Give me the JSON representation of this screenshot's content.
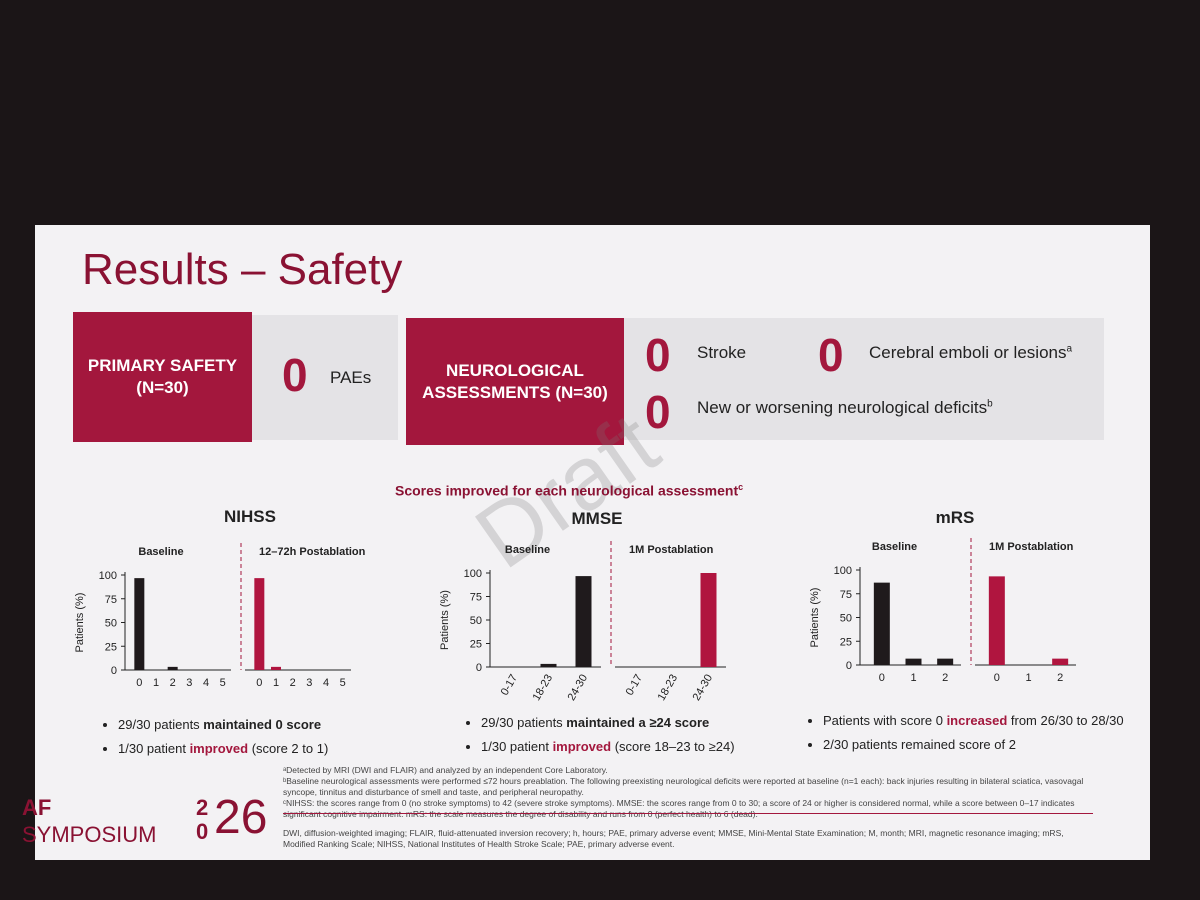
{
  "title": "Results – Safety",
  "primary": {
    "label": "PRIMARY SAFETY (N=30)",
    "value": "0",
    "unit": "PAEs"
  },
  "neuro": {
    "label": "NEUROLOGICAL ASSESSMENTS (N=30)",
    "items": [
      {
        "value": "0",
        "text": "Stroke"
      },
      {
        "value": "0",
        "text": "Cerebral emboli or lesions",
        "sup": "a"
      },
      {
        "value": "0",
        "text": "New or worsening neurological deficits",
        "sup": "b"
      }
    ]
  },
  "watermark": "Draft",
  "heading": {
    "text": "Scores improved for each neurological assessment",
    "sup": "c"
  },
  "chart_data": [
    {
      "type": "bar",
      "title": "NIHSS",
      "ylabel": "Patients (%)",
      "categories": [
        "0",
        "1",
        "2",
        "3",
        "4",
        "5"
      ],
      "ylim": [
        0,
        100
      ],
      "yticks": [
        0,
        25,
        50,
        75,
        100
      ],
      "series": [
        {
          "name": "Baseline",
          "color": "#1f1a1c",
          "values": [
            96.7,
            0,
            3.3,
            0,
            0,
            0
          ]
        },
        {
          "name": "12–72h Postablation",
          "color": "#b0153f",
          "values": [
            96.7,
            3.3,
            0,
            0,
            0,
            0
          ]
        }
      ]
    },
    {
      "type": "bar",
      "title": "MMSE",
      "ylabel": "Patients (%)",
      "categories": [
        "0-17",
        "18-23",
        "24-30"
      ],
      "ylim": [
        0,
        100
      ],
      "yticks": [
        0,
        25,
        50,
        75,
        100
      ],
      "series": [
        {
          "name": "Baseline",
          "color": "#1f1a1c",
          "values": [
            0,
            3.3,
            96.7
          ]
        },
        {
          "name": "1M Postablation",
          "color": "#b0153f",
          "values": [
            0,
            0,
            100
          ]
        }
      ]
    },
    {
      "type": "bar",
      "title": "mRS",
      "ylabel": "Patients (%)",
      "categories": [
        "0",
        "1",
        "2"
      ],
      "ylim": [
        0,
        100
      ],
      "yticks": [
        0,
        25,
        50,
        75,
        100
      ],
      "series": [
        {
          "name": "Baseline",
          "color": "#1f1a1c",
          "values": [
            86.7,
            6.7,
            6.7
          ]
        },
        {
          "name": "1M Postablation",
          "color": "#b0153f",
          "values": [
            93.3,
            0,
            6.7
          ]
        }
      ]
    }
  ],
  "bullets": [
    [
      {
        "before": "29/30 patients ",
        "emphasis": "maintained 0 score",
        "color": "#222222"
      },
      {
        "before": "1/30 patient ",
        "emphasis": "improved",
        "after": " (score 2 to 1)",
        "color": "#a3173d"
      }
    ],
    [
      {
        "before": "29/30 patients ",
        "emphasis": "maintained a ≥24 score",
        "color": "#222222"
      },
      {
        "before": "1/30 patient ",
        "emphasis": "improved",
        "after": " (score 18–23 to ≥24)",
        "color": "#a3173d"
      }
    ],
    [
      {
        "before": "Patients with score 0 ",
        "emphasis": "increased",
        "after": " from 26/30 to 28/30",
        "color": "#a3173d"
      },
      {
        "before": "2/30 patients remained score of 2"
      }
    ]
  ],
  "footnotes": [
    "ᵃDetected by MRI (DWI and FLAIR) and analyzed by an independent Core Laboratory.",
    "ᵇBaseline neurological assessments were performed ≤72 hours preablation. The following preexisting neurological deficits were reported at baseline (n=1 each): back injuries resulting in bilateral sciatica, vasovagal syncope, tinnitus and disturbance of smell and taste, and peripheral neuropathy.",
    "ᶜNIHSS: the scores range from 0 (no stroke symptoms) to 42 (severe stroke symptoms). MMSE: the scores range from 0 to 30; a score of 24 or higher is considered normal, while a score between 0–17 indicates significant cognitive impairment. mRS: the scale measures the degree of disability and runs from 0 (perfect health) to 6 (dead)."
  ],
  "abbreviations": "DWI, diffusion-weighted imaging; FLAIR, fluid-attenuated inversion recovery; h, hours; PAE, primary adverse event; MMSE, Mini-Mental State Examination; M, month; MRI, magnetic resonance imaging; mRS, Modified Ranking Scale; NIHSS, National Institutes of Health Stroke Scale; PAE, primary adverse event.",
  "logo": {
    "line1": "AF",
    "line2": "SYMPOSIUM",
    "year_a": "2",
    "year_b": "0",
    "year_c": "26"
  }
}
